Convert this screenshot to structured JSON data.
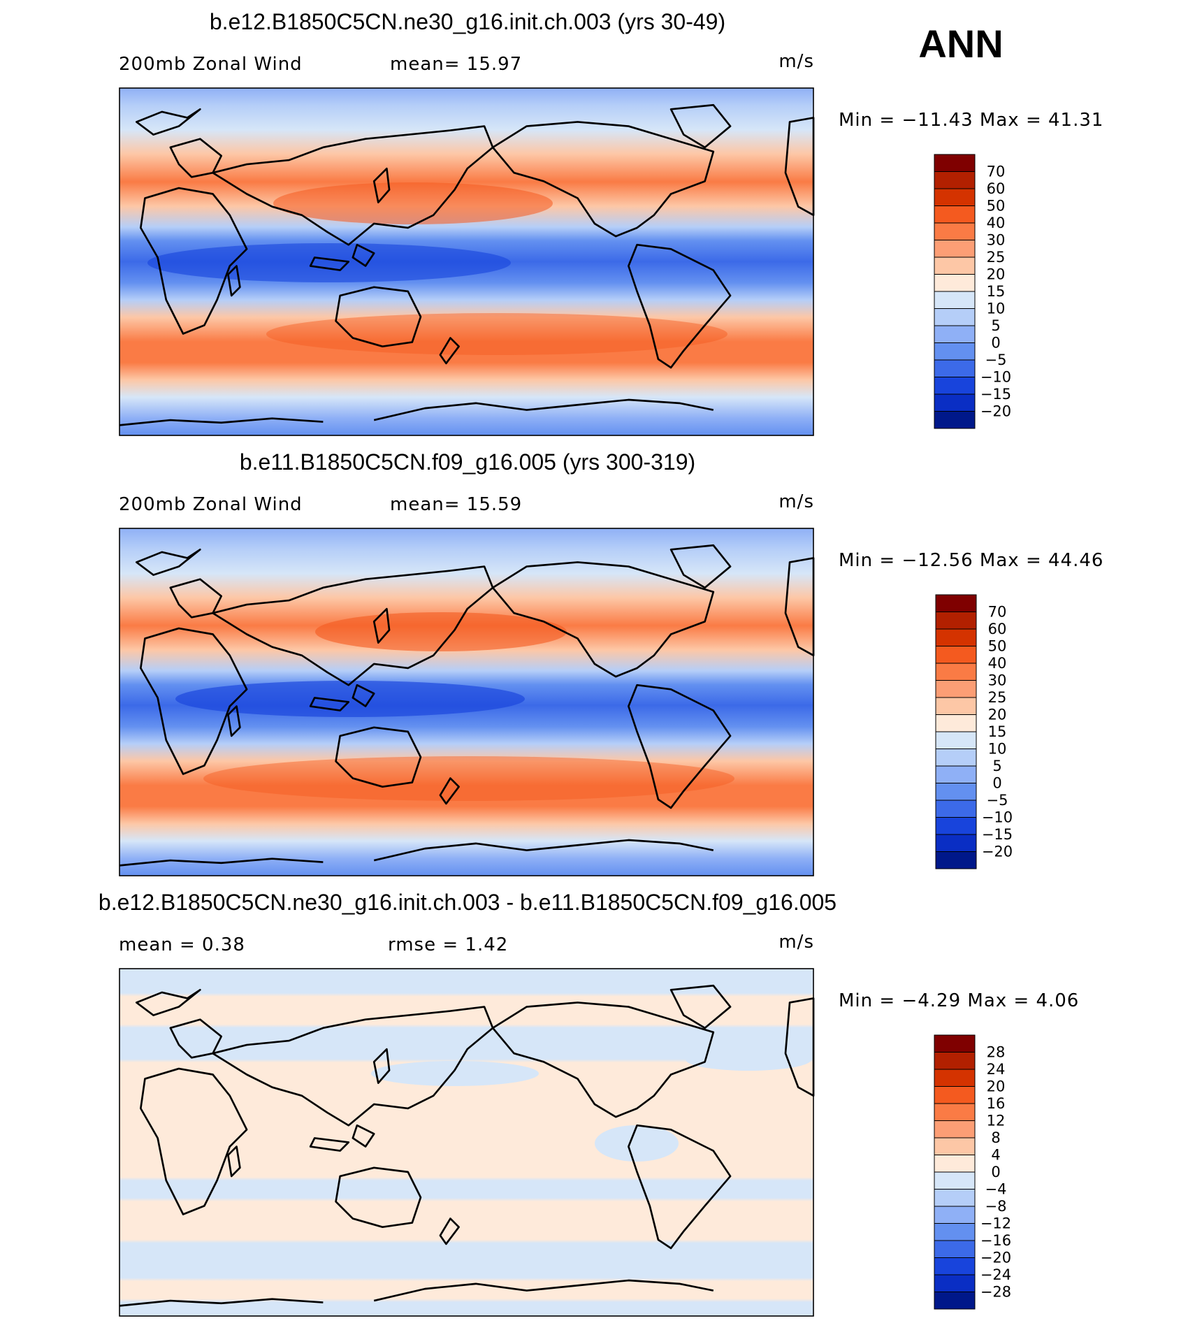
{
  "season": "ANN",
  "units": "m/s",
  "panels": [
    {
      "title": "b.e12.B1850C5CN.ne30_g16.init.ch.003 (yrs 30-49)",
      "left_label": "200mb Zonal Wind",
      "center_label": "mean=  15.97",
      "minmax": "Min = −11.43 Max =  41.31",
      "colorbar": {
        "labels": [
          "70",
          "60",
          "50",
          "40",
          "30",
          "25",
          "20",
          "15",
          "10",
          "5",
          "0",
          "−5",
          "−10",
          "−15",
          "−20"
        ],
        "colors": [
          "#7f0000",
          "#b22000",
          "#d43300",
          "#f45a1f",
          "#fa7b45",
          "#fc9e75",
          "#fdc7a6",
          "#feeada",
          "#d6e6f8",
          "#b5cef8",
          "#8fb0f6",
          "#6390f0",
          "#3c6ae8",
          "#1844dc",
          "#0a2ec4",
          "#00188a"
        ]
      }
    },
    {
      "title": "b.e11.B1850C5CN.f09_g16.005 (yrs 300-319)",
      "left_label": "200mb Zonal Wind",
      "center_label": "mean=  15.59",
      "minmax": "Min = −12.56 Max =  44.46",
      "colorbar": {
        "labels": [
          "70",
          "60",
          "50",
          "40",
          "30",
          "25",
          "20",
          "15",
          "10",
          "5",
          "0",
          "−5",
          "−10",
          "−15",
          "−20"
        ],
        "colors": [
          "#7f0000",
          "#b22000",
          "#d43300",
          "#f45a1f",
          "#fa7b45",
          "#fc9e75",
          "#fdc7a6",
          "#feeada",
          "#d6e6f8",
          "#b5cef8",
          "#8fb0f6",
          "#6390f0",
          "#3c6ae8",
          "#1844dc",
          "#0a2ec4",
          "#00188a"
        ]
      }
    },
    {
      "title": "b.e12.B1850C5CN.ne30_g16.init.ch.003 - b.e11.B1850C5CN.f09_g16.005",
      "left_label": "mean =   0.38",
      "center_label": "rmse =   1.42",
      "minmax": "Min =  −4.29 Max =   4.06",
      "colorbar": {
        "labels": [
          "28",
          "24",
          "20",
          "16",
          "12",
          "8",
          "4",
          "0",
          "−4",
          "−8",
          "−12",
          "−16",
          "−20",
          "−24",
          "−28"
        ],
        "colors": [
          "#7f0000",
          "#b22000",
          "#d43300",
          "#f45a1f",
          "#fa7b45",
          "#fc9e75",
          "#fdc7a6",
          "#feeada",
          "#d6e6f8",
          "#b5cef8",
          "#8fb0f6",
          "#6390f0",
          "#3c6ae8",
          "#1844dc",
          "#0a2ec4",
          "#00188a"
        ]
      }
    }
  ]
}
